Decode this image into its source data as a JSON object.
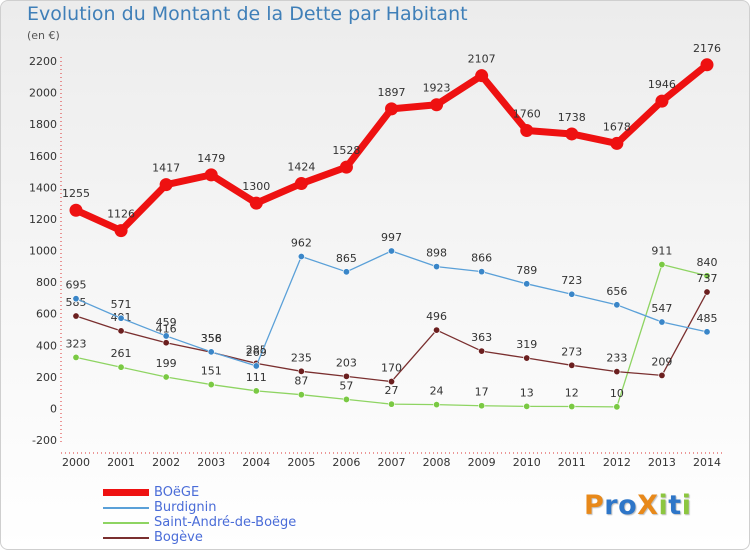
{
  "header": {
    "title": "Evolution du Montant de la Dette par Habitant",
    "subtitle": "(en €)"
  },
  "logo": {
    "text": "ProXiti",
    "letters": [
      {
        "ch": "P",
        "color": "#e8891a"
      },
      {
        "ch": "r",
        "color": "#2e76c8"
      },
      {
        "ch": "o",
        "color": "#2e76c8"
      },
      {
        "ch": "X",
        "color": "#e8891a"
      },
      {
        "ch": "i",
        "color": "#8cc63f"
      },
      {
        "ch": "t",
        "color": "#2e76c8"
      },
      {
        "ch": "i",
        "color": "#8cc63f"
      }
    ]
  },
  "chart_data": {
    "type": "line",
    "title": "Evolution du Montant de la Dette par Habitant",
    "ylabel": "(en €)",
    "xlabel": "",
    "ylim": [
      -200,
      2200
    ],
    "yticks": [
      -200,
      0,
      200,
      400,
      600,
      800,
      1000,
      1200,
      1400,
      1600,
      1800,
      2000,
      2200
    ],
    "x": [
      "2000",
      "2001",
      "2002",
      "2003",
      "2004",
      "2005",
      "2006",
      "2007",
      "2008",
      "2009",
      "2010",
      "2011",
      "2012",
      "2013",
      "2014"
    ],
    "grid": false,
    "legend": "bottom-left",
    "series": [
      {
        "name": "Saint-André-de-Boëge",
        "color": "#8ed462",
        "marker": "#7ac943",
        "width": 1.3,
        "r": 3.2,
        "values": [
          323,
          261,
          199,
          151,
          111,
          87,
          57,
          27,
          24,
          17,
          13,
          12,
          10,
          911,
          840
        ]
      },
      {
        "name": "Bogève",
        "color": "#7a2f2f",
        "marker": "#6b1f1f",
        "width": 1.3,
        "r": 3.2,
        "values": [
          585,
          491,
          416,
          356,
          285,
          235,
          203,
          170,
          496,
          363,
          319,
          273,
          233,
          209,
          737
        ]
      },
      {
        "name": "Burdignin",
        "color": "#5aa0d8",
        "marker": "#3a86c8",
        "width": 1.3,
        "r": 3.2,
        "values": [
          695,
          571,
          459,
          358,
          269,
          962,
          865,
          997,
          898,
          866,
          789,
          723,
          656,
          547,
          485
        ]
      },
      {
        "name": "BOëGE",
        "color": "#ee1111",
        "marker": "#ee1111",
        "width": 7,
        "r": 6.5,
        "values": [
          1255,
          1126,
          1417,
          1479,
          1300,
          1424,
          1528,
          1897,
          1923,
          2107,
          1760,
          1738,
          1678,
          1946,
          2176
        ]
      }
    ],
    "legend_order": [
      "BOëGE",
      "Burdignin",
      "Saint-André-de-Boëge",
      "Bogève"
    ]
  }
}
